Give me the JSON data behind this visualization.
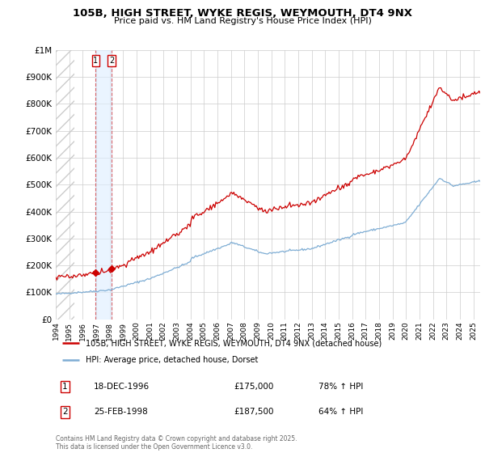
{
  "title": "105B, HIGH STREET, WYKE REGIS, WEYMOUTH, DT4 9NX",
  "subtitle": "Price paid vs. HM Land Registry's House Price Index (HPI)",
  "legend_line1": "105B, HIGH STREET, WYKE REGIS, WEYMOUTH, DT4 9NX (detached house)",
  "legend_line2": "HPI: Average price, detached house, Dorset",
  "transaction1_date": "18-DEC-1996",
  "transaction1_price": "£175,000",
  "transaction1_hpi": "78% ↑ HPI",
  "transaction1_year": 1996.96,
  "transaction1_value": 175000,
  "transaction2_date": "25-FEB-1998",
  "transaction2_price": "£187,500",
  "transaction2_hpi": "64% ↑ HPI",
  "transaction2_year": 1998.15,
  "transaction2_value": 187500,
  "footer": "Contains HM Land Registry data © Crown copyright and database right 2025.\nThis data is licensed under the Open Government Licence v3.0.",
  "red_color": "#cc0000",
  "blue_color": "#7eadd4",
  "bg_color": "#ffffff",
  "grid_color": "#cccccc",
  "highlight_fill": "#ddeeff",
  "ylim_max": 1000000,
  "xlim_min": 1994,
  "xlim_max": 2025.5
}
